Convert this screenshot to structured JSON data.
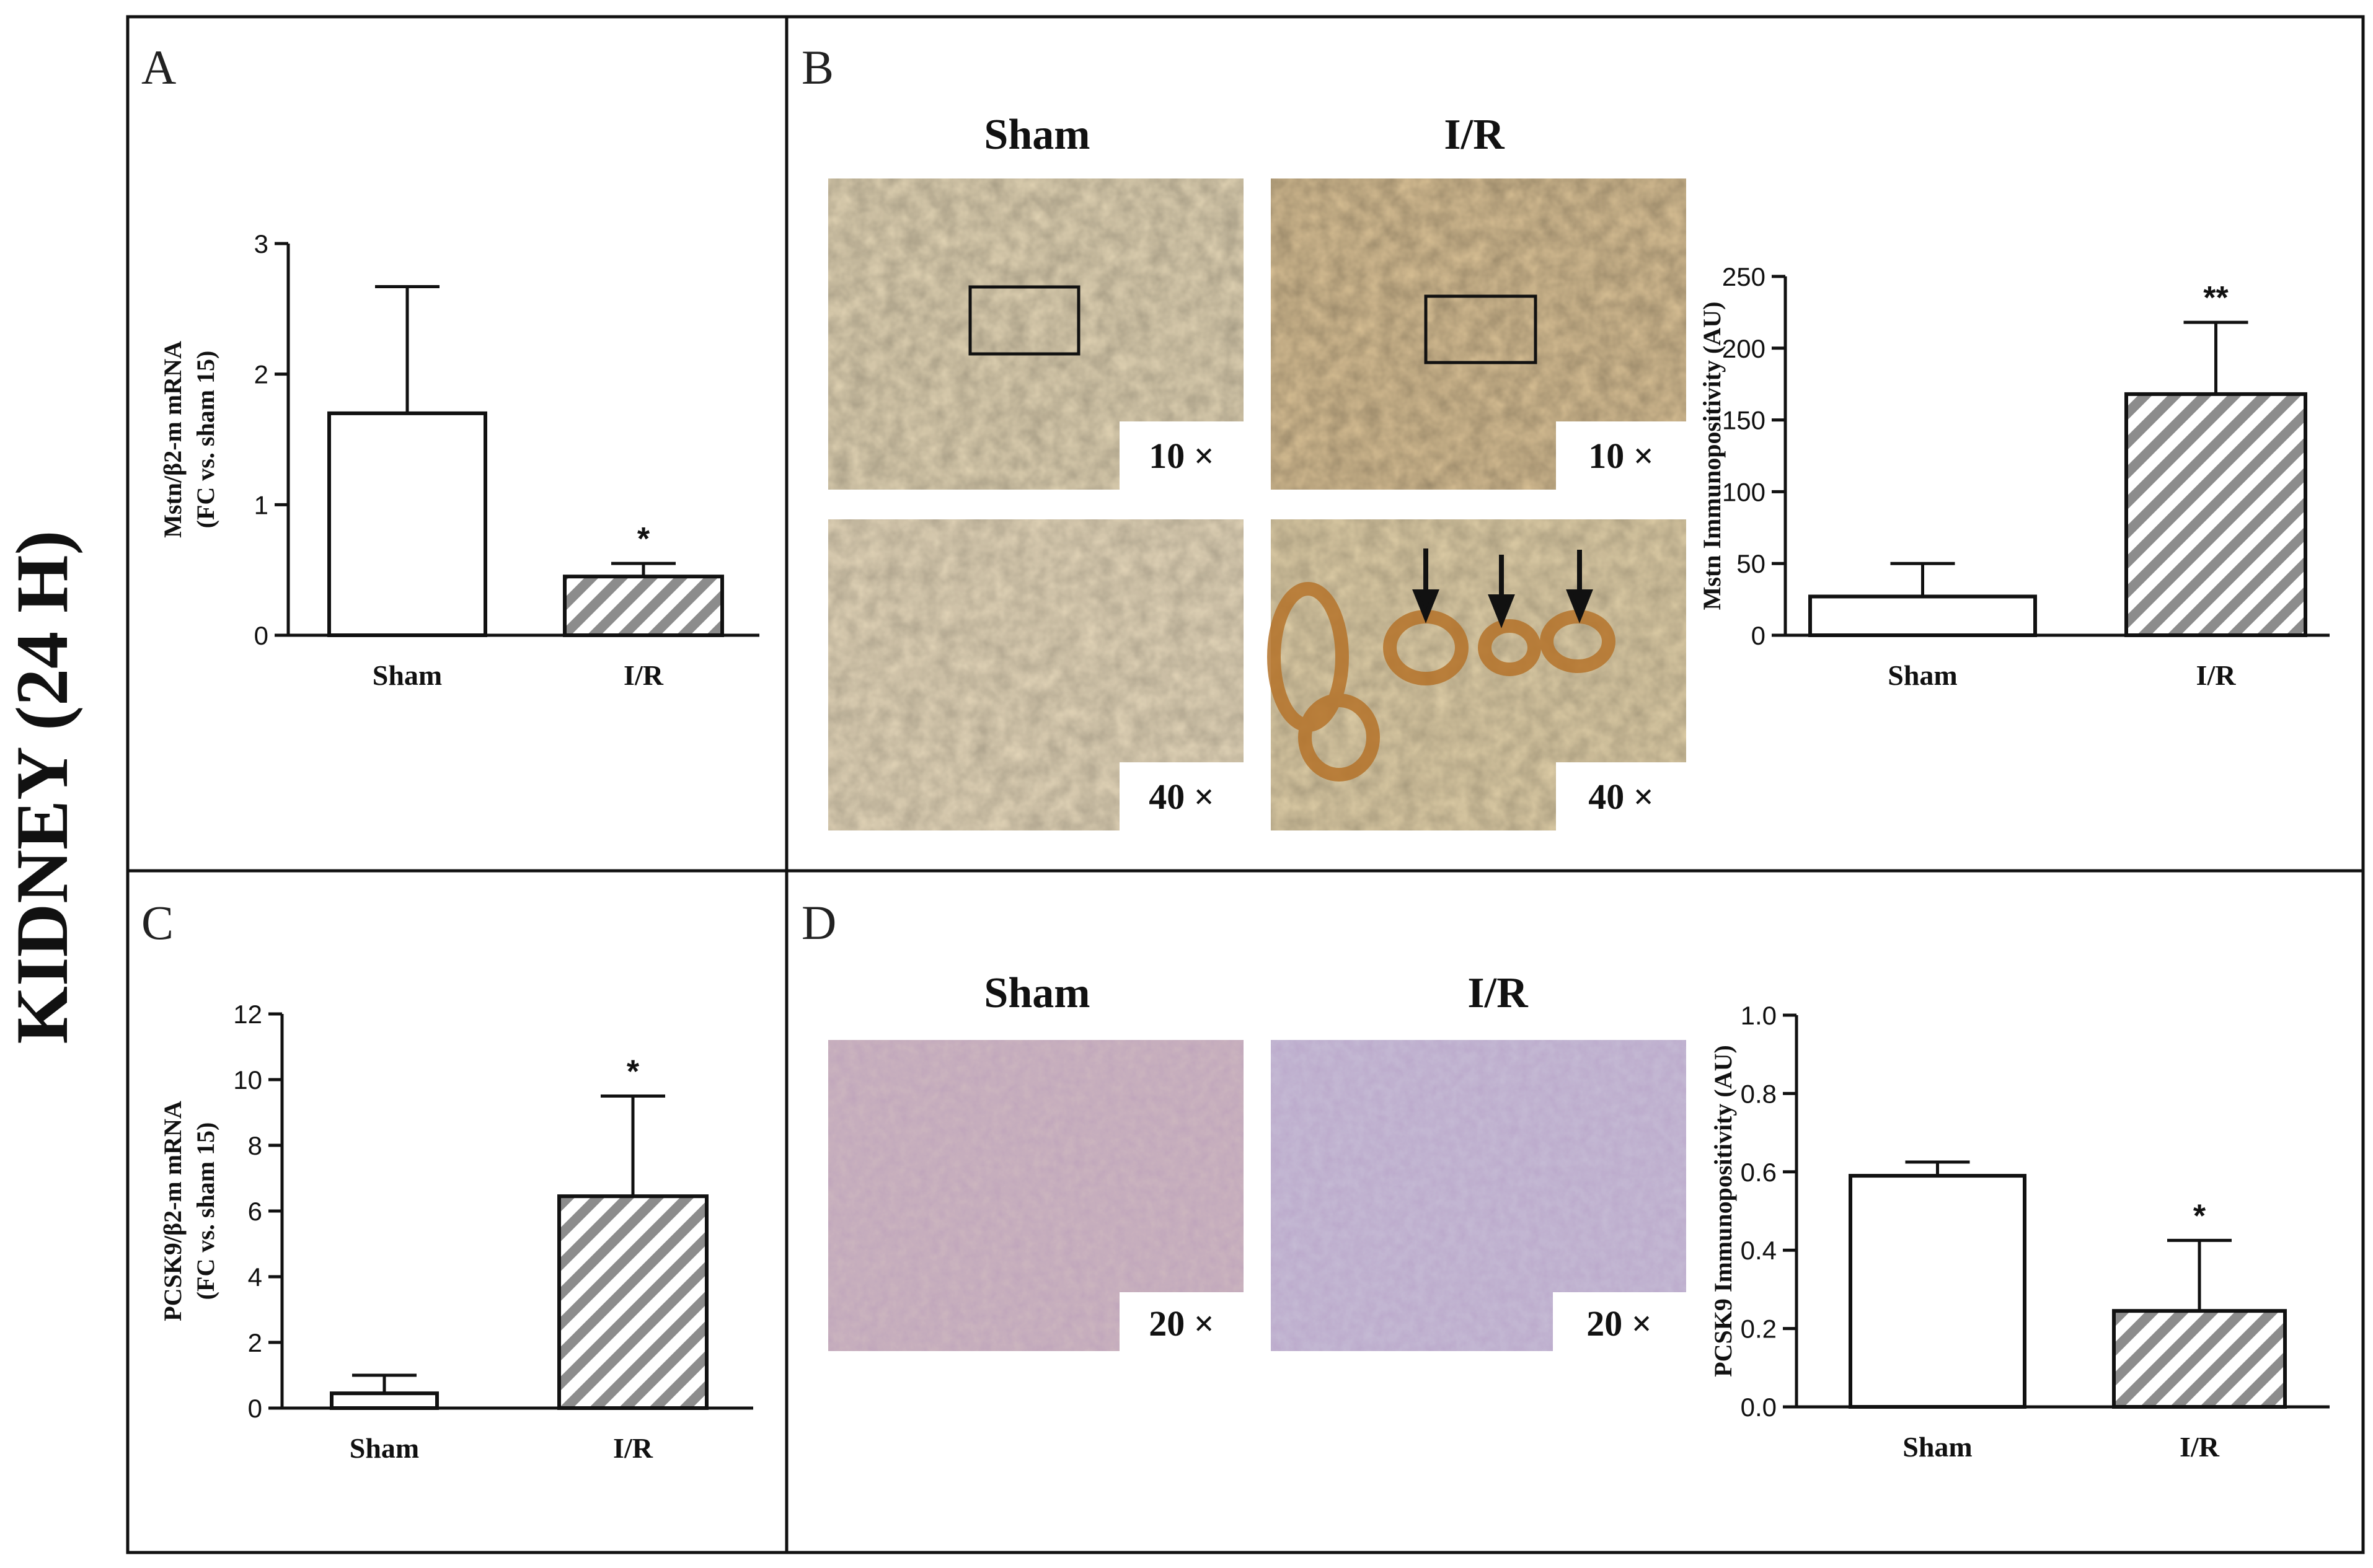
{
  "figure": {
    "side_title": "KIDNEY (24 H)",
    "panel_letters": [
      "A",
      "B",
      "C",
      "D"
    ]
  },
  "images": {
    "B": {
      "titles": [
        "Sham",
        "I/R"
      ],
      "magnifications": [
        "10 ×",
        "10 ×",
        "40 ×",
        "40 ×"
      ]
    },
    "D": {
      "titles": [
        "Sham",
        "I/R"
      ],
      "magnifications": [
        "20 ×",
        "20 ×"
      ]
    }
  },
  "colors": {
    "sham_fill": "#ffffff",
    "ir_stripe": "#8c8c8c",
    "stain_sham": "#e3d3b2",
    "stain_ir": "#dcc397",
    "stain_d_sham": "#cdb7c0",
    "stain_d_ir": "#c4b9d3"
  },
  "chart_data": [
    {
      "id": "A",
      "type": "bar",
      "categories": [
        "Sham",
        "I/R"
      ],
      "values": [
        1.7,
        0.45
      ],
      "errors": [
        0.97,
        0.1
      ],
      "significance": [
        "",
        "*"
      ],
      "ylabel": "Mstn/β2-m mRNA",
      "ylabel2": "(FC vs. sham 15)",
      "ylim": [
        0,
        3
      ],
      "yticks": [
        0,
        1,
        2,
        3
      ],
      "tick_labels": [
        "0",
        "1",
        "2",
        "3"
      ]
    },
    {
      "id": "B",
      "type": "bar",
      "categories": [
        "Sham",
        "I/R"
      ],
      "values": [
        27,
        168
      ],
      "errors": [
        23,
        50
      ],
      "significance": [
        "",
        "**"
      ],
      "ylabel": "Mstn Immunopositivity (AU)",
      "ylabel2": "",
      "ylim": [
        0,
        250
      ],
      "yticks": [
        0,
        50,
        100,
        150,
        200,
        250
      ],
      "tick_labels": [
        "0",
        "50",
        "100",
        "150",
        "200",
        "250"
      ]
    },
    {
      "id": "C",
      "type": "bar",
      "categories": [
        "Sham",
        "I/R"
      ],
      "values": [
        0.45,
        6.45
      ],
      "errors": [
        0.55,
        3.05
      ],
      "significance": [
        "",
        "*"
      ],
      "ylabel": "PCSK9/β2-m mRNA",
      "ylabel2": "(FC vs. sham 15)",
      "ylim": [
        0,
        12
      ],
      "yticks": [
        0,
        2,
        4,
        6,
        8,
        10,
        12
      ],
      "tick_labels": [
        "0",
        "2",
        "4",
        "6",
        "8",
        "10",
        "12"
      ]
    },
    {
      "id": "D",
      "type": "bar",
      "categories": [
        "Sham",
        "I/R"
      ],
      "values": [
        0.59,
        0.245
      ],
      "errors": [
        0.035,
        0.18
      ],
      "significance": [
        "",
        "*"
      ],
      "ylabel": "PCSK9 Immunopositivity (AU)",
      "ylabel2": "",
      "ylim": [
        0,
        1
      ],
      "yticks": [
        0,
        0.2,
        0.4,
        0.6,
        0.8,
        1
      ],
      "tick_labels": [
        "0.0",
        "0.2",
        "0.4",
        "0.6",
        "0.8",
        "1.0"
      ]
    }
  ]
}
